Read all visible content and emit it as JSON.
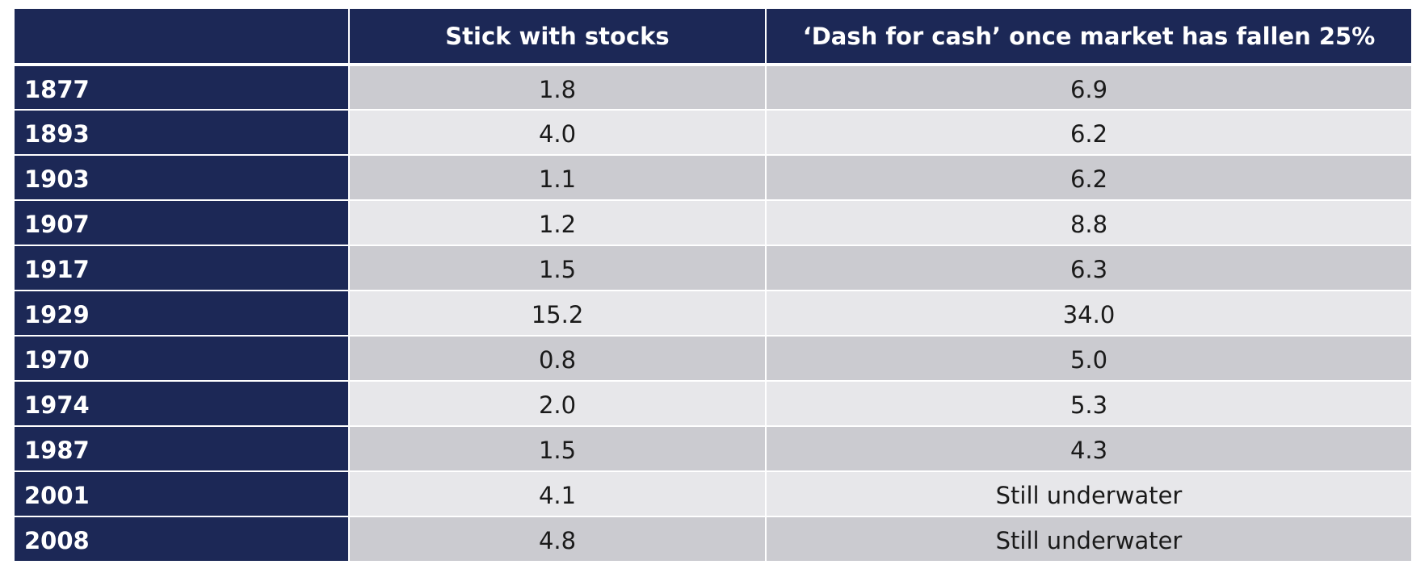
{
  "chart_data": {
    "type": "table",
    "columns": [
      "",
      "Stick with stocks",
      "‘Dash for cash’ once market has fallen 25%"
    ],
    "rows": [
      {
        "year": "1877",
        "stick": "1.8",
        "dash": "6.9"
      },
      {
        "year": "1893",
        "stick": "4.0",
        "dash": "6.2"
      },
      {
        "year": "1903",
        "stick": "1.1",
        "dash": "6.2"
      },
      {
        "year": "1907",
        "stick": "1.2",
        "dash": "8.8"
      },
      {
        "year": "1917",
        "stick": "1.5",
        "dash": "6.3"
      },
      {
        "year": "1929",
        "stick": "15.2",
        "dash": "34.0"
      },
      {
        "year": "1970",
        "stick": "0.8",
        "dash": "5.0"
      },
      {
        "year": "1974",
        "stick": "2.0",
        "dash": "5.3"
      },
      {
        "year": "1987",
        "stick": "1.5",
        "dash": "4.3"
      },
      {
        "year": "2001",
        "stick": "4.1",
        "dash": "Still underwater"
      },
      {
        "year": "2008",
        "stick": "4.8",
        "dash": "Still underwater"
      }
    ]
  },
  "colors": {
    "header_bg": "#1c2856",
    "year_bg": "#1c2856",
    "row_dark": "#cbcbd0",
    "row_light": "#e7e7ea"
  }
}
